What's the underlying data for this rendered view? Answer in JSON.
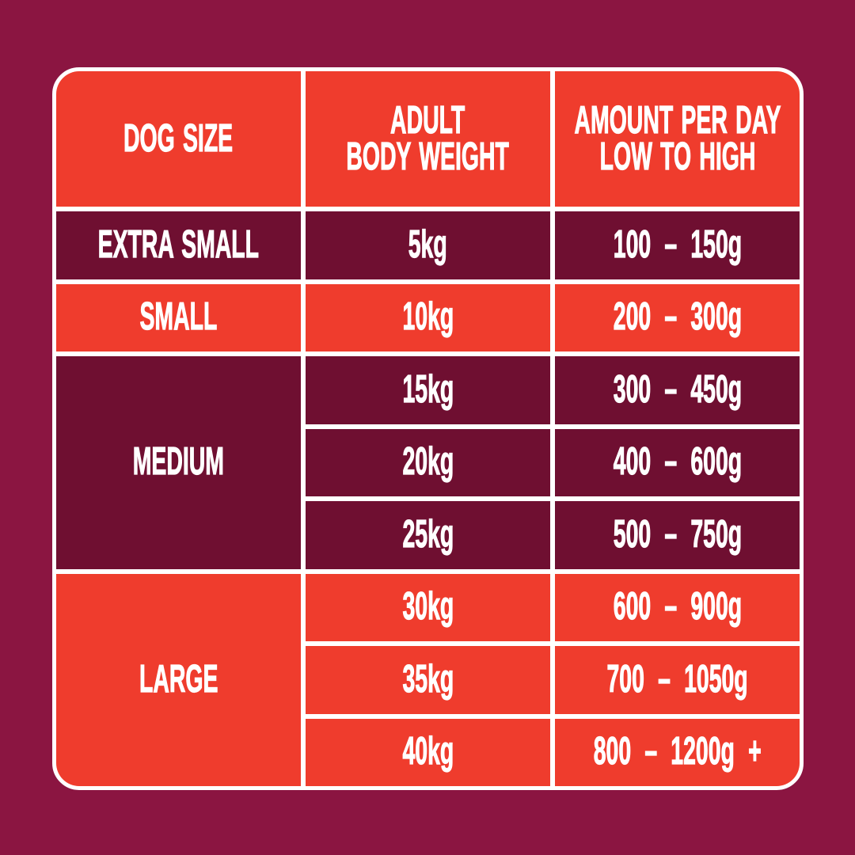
{
  "colors": {
    "background": "#8B1541",
    "red": "#EF3C2D",
    "dark": "#6F0F31",
    "border": "#FFFFFF",
    "text": "#FFFFFF"
  },
  "table": {
    "headers": {
      "dog_size": "DOG SIZE",
      "body_weight": "ADULT\nBODY WEIGHT",
      "amount": "AMOUNT PER DAY\nLOW TO HIGH"
    },
    "groups": [
      {
        "size": "EXTRA SMALL",
        "tone": "dark",
        "rows": [
          {
            "weight": "5kg",
            "amount": "100 – 150g"
          }
        ]
      },
      {
        "size": "SMALL",
        "tone": "red",
        "rows": [
          {
            "weight": "10kg",
            "amount": "200 – 300g"
          }
        ]
      },
      {
        "size": "MEDIUM",
        "tone": "dark",
        "rows": [
          {
            "weight": "15kg",
            "amount": "300 – 450g"
          },
          {
            "weight": "20kg",
            "amount": "400 – 600g"
          },
          {
            "weight": "25kg",
            "amount": "500 – 750g"
          }
        ]
      },
      {
        "size": "LARGE",
        "tone": "red",
        "rows": [
          {
            "weight": "30kg",
            "amount": "600 – 900g"
          },
          {
            "weight": "35kg",
            "amount": "700 – 1050g"
          },
          {
            "weight": "40kg",
            "amount": "800 – 1200g +"
          }
        ]
      }
    ]
  }
}
